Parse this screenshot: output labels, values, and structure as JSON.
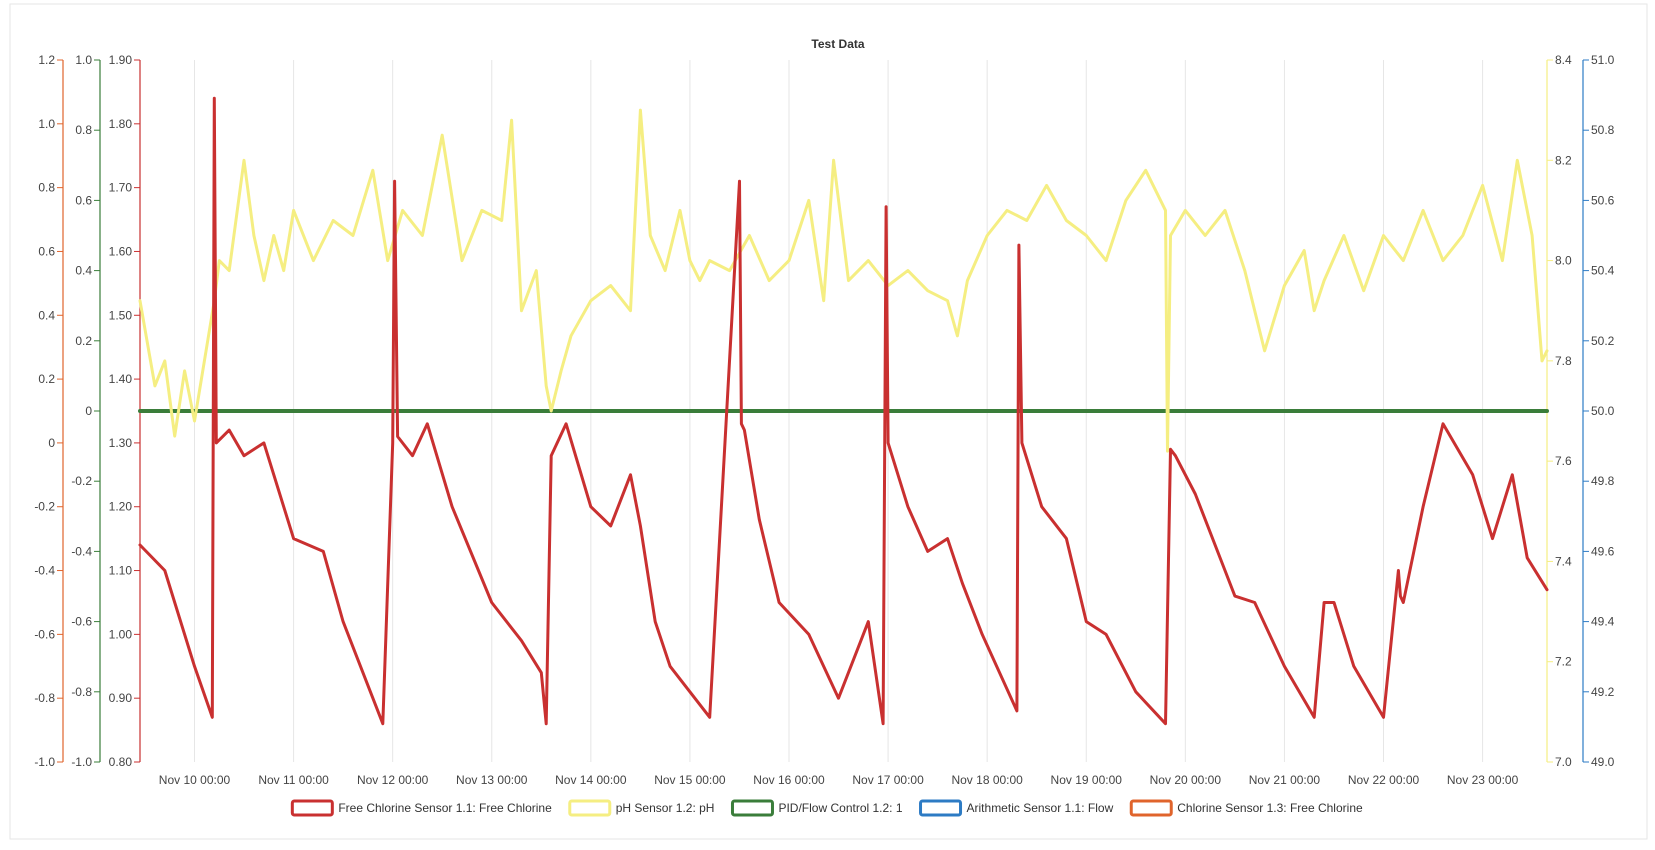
{
  "chart_data": {
    "type": "line",
    "title": "Test Data",
    "grid": true,
    "legend_position": "bottom",
    "x_tick_labels": [
      "Nov 10 00:00",
      "Nov 11 00:00",
      "Nov 12 00:00",
      "Nov 13 00:00",
      "Nov 14 00:00",
      "Nov 15 00:00",
      "Nov 16 00:00",
      "Nov 17 00:00",
      "Nov 18 00:00",
      "Nov 19 00:00",
      "Nov 20 00:00",
      "Nov 21 00:00",
      "Nov 22 00:00",
      "Nov 23 00:00"
    ],
    "xlim_days": [
      -0.55,
      13.65
    ],
    "axes": [
      {
        "id": "chlorine13",
        "side": "left",
        "color": "#e0642c",
        "range": [
          -1.0,
          1.2
        ],
        "step": 0.2,
        "decimals": 1,
        "ticks": [
          -1.0,
          -0.8,
          -0.6,
          -0.4,
          -0.2,
          0,
          0.2,
          0.4,
          0.6,
          0.8,
          1.0,
          1.2
        ]
      },
      {
        "id": "pid",
        "side": "left",
        "color": "#3a7d3a",
        "range": [
          -1.0,
          1.0
        ],
        "step": 0.2,
        "decimals": 1,
        "ticks": [
          -1.0,
          -0.8,
          -0.6,
          -0.4,
          -0.2,
          0,
          0.2,
          0.4,
          0.6,
          0.8,
          1.0
        ]
      },
      {
        "id": "freecl",
        "side": "left",
        "color": "#c93030",
        "range": [
          0.8,
          1.9
        ],
        "step": 0.1,
        "decimals": 2,
        "ticks": [
          0.8,
          0.9,
          1.0,
          1.1,
          1.2,
          1.3,
          1.4,
          1.5,
          1.6,
          1.7,
          1.8,
          1.9
        ]
      },
      {
        "id": "ph",
        "side": "right",
        "color": "#f5ee82",
        "range": [
          7.0,
          8.4
        ],
        "step": 0.2,
        "decimals": 1,
        "ticks": [
          7.0,
          7.2,
          7.4,
          7.6,
          7.8,
          8.0,
          8.2,
          8.4
        ]
      },
      {
        "id": "flow",
        "side": "right",
        "color": "#2d7bc4",
        "range": [
          49.0,
          51.0
        ],
        "step": 0.2,
        "decimals": 1,
        "ticks": [
          49.0,
          49.2,
          49.4,
          49.6,
          49.8,
          50.0,
          50.2,
          50.4,
          50.6,
          50.8,
          51.0
        ]
      }
    ],
    "series": [
      {
        "name": "Free Chlorine Sensor 1.1: Free Chlorine",
        "color": "#c93030",
        "axis": "freecl",
        "x": [
          -0.55,
          -0.3,
          0,
          0.18,
          0.2,
          0.22,
          0.35,
          0.5,
          0.7,
          1.0,
          1.3,
          1.5,
          1.9,
          2.0,
          2.02,
          2.05,
          2.2,
          2.35,
          2.6,
          3.0,
          3.3,
          3.5,
          3.55,
          3.6,
          3.75,
          4.0,
          4.2,
          4.4,
          4.5,
          4.65,
          4.8,
          5.2,
          5.5,
          5.52,
          5.55,
          5.7,
          5.9,
          6.2,
          6.5,
          6.8,
          6.95,
          6.98,
          7.0,
          7.2,
          7.4,
          7.6,
          7.75,
          7.95,
          8.3,
          8.32,
          8.35,
          8.55,
          8.8,
          9.0,
          9.2,
          9.5,
          9.8,
          9.85,
          9.9,
          10.1,
          10.4,
          10.5,
          10.7,
          11.0,
          11.3,
          11.4,
          11.5,
          11.7,
          12.0,
          12.15,
          12.17,
          12.2,
          12.4,
          12.6,
          12.9,
          13.1,
          13.3,
          13.45,
          13.65
        ],
        "y": [
          1.14,
          1.1,
          0.95,
          0.87,
          1.84,
          1.3,
          1.32,
          1.28,
          1.3,
          1.15,
          1.13,
          1.02,
          0.86,
          1.3,
          1.71,
          1.31,
          1.28,
          1.33,
          1.2,
          1.05,
          0.99,
          0.94,
          0.86,
          1.28,
          1.33,
          1.2,
          1.17,
          1.25,
          1.17,
          1.02,
          0.95,
          0.87,
          1.71,
          1.33,
          1.32,
          1.18,
          1.05,
          1.0,
          0.9,
          1.02,
          0.86,
          1.67,
          1.3,
          1.2,
          1.13,
          1.15,
          1.08,
          1.0,
          0.88,
          1.61,
          1.3,
          1.2,
          1.15,
          1.02,
          1.0,
          0.91,
          0.86,
          1.29,
          1.28,
          1.22,
          1.1,
          1.06,
          1.05,
          0.95,
          0.87,
          1.05,
          1.05,
          0.95,
          0.87,
          1.1,
          1.06,
          1.05,
          1.2,
          1.33,
          1.25,
          1.15,
          1.25,
          1.12,
          1.07
        ]
      },
      {
        "name": "pH Sensor 1.2: pH",
        "color": "#f5ee82",
        "axis": "ph",
        "x": [
          -0.55,
          -0.4,
          -0.3,
          -0.2,
          -0.1,
          0,
          0.1,
          0.2,
          0.25,
          0.35,
          0.5,
          0.6,
          0.7,
          0.8,
          0.9,
          1.0,
          1.2,
          1.4,
          1.6,
          1.8,
          1.95,
          2.1,
          2.3,
          2.5,
          2.7,
          2.9,
          3.1,
          3.2,
          3.3,
          3.45,
          3.55,
          3.6,
          3.7,
          3.8,
          4.0,
          4.2,
          4.4,
          4.5,
          4.6,
          4.75,
          4.9,
          5.0,
          5.1,
          5.2,
          5.4,
          5.6,
          5.8,
          6.0,
          6.2,
          6.35,
          6.45,
          6.6,
          6.8,
          7.0,
          7.2,
          7.4,
          7.6,
          7.7,
          7.8,
          8.0,
          8.2,
          8.4,
          8.6,
          8.8,
          9.0,
          9.2,
          9.4,
          9.6,
          9.8,
          9.82,
          9.85,
          10.0,
          10.2,
          10.4,
          10.6,
          10.8,
          11.0,
          11.2,
          11.3,
          11.4,
          11.6,
          11.8,
          12.0,
          12.2,
          12.4,
          12.6,
          12.8,
          13.0,
          13.2,
          13.35,
          13.5,
          13.6,
          13.65
        ],
        "y": [
          7.92,
          7.75,
          7.8,
          7.65,
          7.78,
          7.68,
          7.8,
          7.92,
          8.0,
          7.98,
          8.2,
          8.05,
          7.96,
          8.05,
          7.98,
          8.1,
          8.0,
          8.08,
          8.05,
          8.18,
          8.0,
          8.1,
          8.05,
          8.25,
          8.0,
          8.1,
          8.08,
          8.28,
          7.9,
          7.98,
          7.75,
          7.7,
          7.78,
          7.85,
          7.92,
          7.95,
          7.9,
          8.3,
          8.05,
          7.98,
          8.1,
          8.0,
          7.96,
          8.0,
          7.98,
          8.05,
          7.96,
          8.0,
          8.12,
          7.92,
          8.2,
          7.96,
          8.0,
          7.95,
          7.98,
          7.94,
          7.92,
          7.85,
          7.96,
          8.05,
          8.1,
          8.08,
          8.15,
          8.08,
          8.05,
          8.0,
          8.12,
          8.18,
          8.1,
          7.62,
          8.05,
          8.1,
          8.05,
          8.1,
          7.98,
          7.82,
          7.95,
          8.02,
          7.9,
          7.96,
          8.05,
          7.94,
          8.05,
          8.0,
          8.1,
          8.0,
          8.05,
          8.15,
          8.0,
          8.2,
          8.05,
          7.8,
          7.82
        ]
      },
      {
        "name": "PID/Flow Control 1.2: 1",
        "color": "#3a7d3a",
        "axis": "pid",
        "x": [
          -0.55,
          13.65
        ],
        "y": [
          0.0,
          0.0
        ]
      },
      {
        "name": "Arithmetic Sensor 1.1: Flow",
        "color": "#2d7bc4",
        "axis": "flow",
        "x": [],
        "y": []
      },
      {
        "name": "Chlorine Sensor 1.3: Free Chlorine",
        "color": "#e0642c",
        "axis": "chlorine13",
        "x": [],
        "y": []
      }
    ]
  }
}
